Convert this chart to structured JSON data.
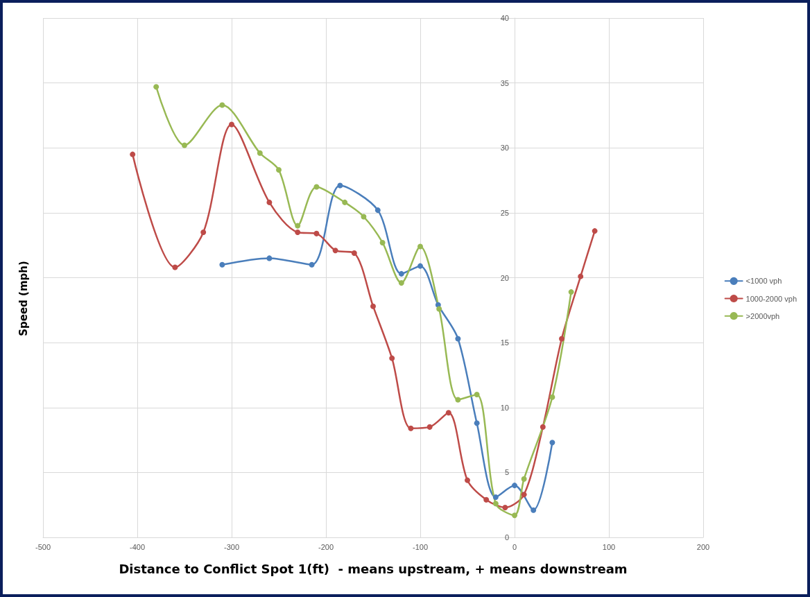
{
  "chart_data": {
    "type": "line",
    "xlabel": "Distance to Conflict Spot 1(ft)  - means upstream, + means downstream",
    "ylabel": "Speed (mph)",
    "xlim": [
      -500,
      200
    ],
    "xticks": [
      -500,
      -400,
      -300,
      -200,
      -100,
      0,
      100,
      200
    ],
    "ylim": [
      0,
      40
    ],
    "yticks": [
      0,
      5,
      10,
      15,
      20,
      25,
      30,
      35,
      40
    ],
    "grid": true,
    "legend": "right",
    "marker": "circle",
    "line_style": "solid",
    "series": [
      {
        "name": "<1000 vph",
        "color": "#4a7ebb",
        "x": [
          -310,
          -260,
          -215,
          -185,
          -145,
          -120,
          -100,
          -81,
          -60,
          -40,
          -20,
          0,
          20,
          40
        ],
        "values": [
          21.0,
          21.5,
          21.0,
          27.1,
          25.2,
          20.3,
          20.9,
          17.9,
          15.3,
          8.8,
          3.1,
          4.0,
          2.1,
          7.3
        ]
      },
      {
        "name": "1000-2000 vph",
        "color": "#be4b48",
        "x": [
          -405,
          -360,
          -330,
          -300,
          -260,
          -230,
          -210,
          -190,
          -170,
          -150,
          -130,
          -110,
          -90,
          -70,
          -50,
          -30,
          -10,
          10,
          30,
          50,
          70,
          85
        ],
        "values": [
          29.5,
          20.8,
          23.5,
          31.8,
          25.8,
          23.5,
          23.4,
          22.1,
          21.9,
          17.8,
          13.8,
          8.4,
          8.5,
          9.6,
          4.4,
          2.9,
          2.3,
          3.3,
          8.5,
          15.3,
          20.1,
          23.6
        ]
      },
      {
        "name": ">2000vph",
        "color": "#98b954",
        "x": [
          -380,
          -350,
          -310,
          -270,
          -250,
          -230,
          -210,
          -180,
          -160,
          -140,
          -120,
          -100,
          -80,
          -60,
          -40,
          -20,
          0,
          10,
          40,
          60
        ],
        "values": [
          34.7,
          30.2,
          33.3,
          29.6,
          28.3,
          24.0,
          27.0,
          25.8,
          24.7,
          22.7,
          19.6,
          22.4,
          17.6,
          10.6,
          11.0,
          2.6,
          1.7,
          4.5,
          10.8,
          18.9
        ]
      }
    ]
  }
}
